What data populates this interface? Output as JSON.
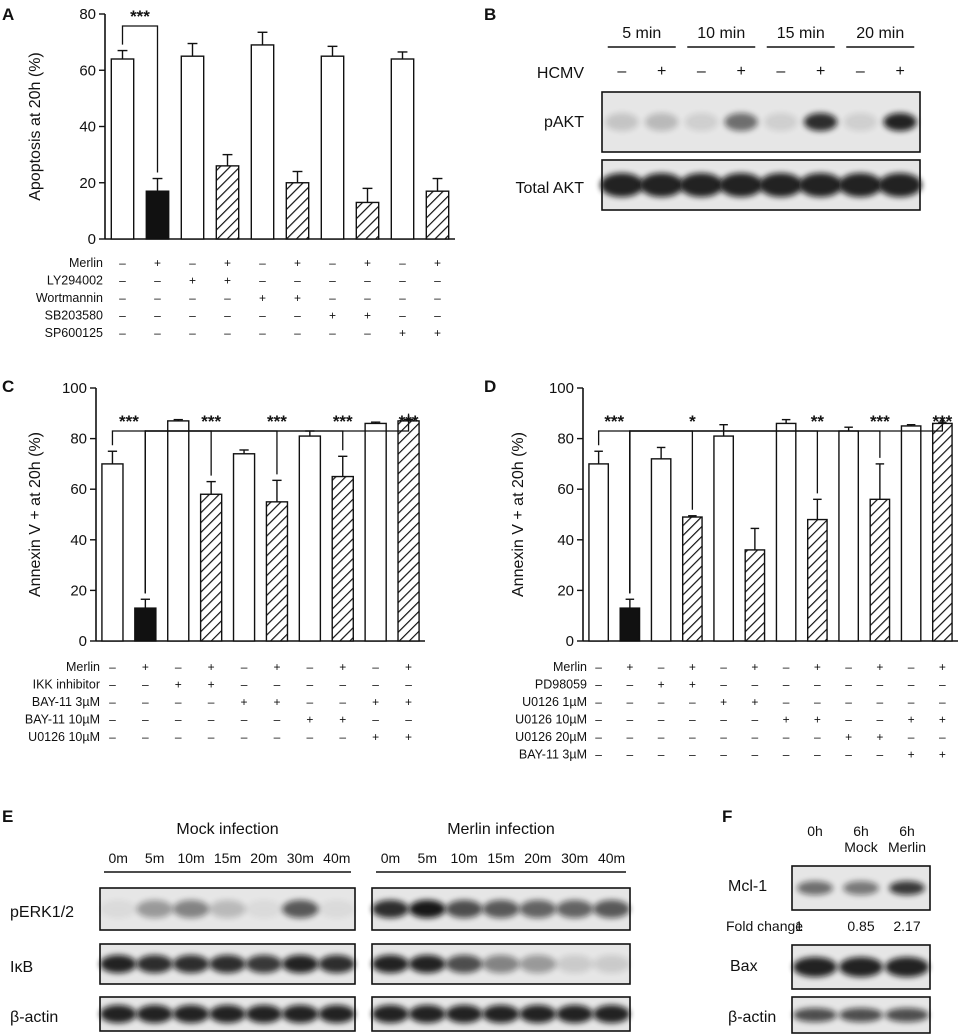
{
  "panels": {
    "A": {
      "label": "A",
      "chart_data": {
        "type": "bar",
        "ylabel": "Apoptosis at 20h (%)",
        "ylim": [
          0,
          80
        ],
        "yticks": [
          0,
          20,
          40,
          60,
          80
        ],
        "values": [
          64,
          17,
          65,
          26,
          69,
          20,
          65,
          13,
          64,
          17
        ],
        "errors": [
          3,
          4.5,
          4.5,
          4,
          4.5,
          4,
          3.5,
          5,
          2.5,
          4.5
        ],
        "styles": [
          "white",
          "black",
          "white",
          "hatched",
          "white",
          "hatched",
          "white",
          "hatched",
          "white",
          "hatched"
        ],
        "conditions": [
          {
            "name": "Merlin",
            "signs": [
              "–",
              "+",
              "–",
              "+",
              "–",
              "+",
              "–",
              "+",
              "–",
              "+"
            ]
          },
          {
            "name": "LY294002",
            "signs": [
              "–",
              "–",
              "+",
              "+",
              "–",
              "–",
              "–",
              "–",
              "–",
              "–"
            ]
          },
          {
            "name": "Wortmannin",
            "signs": [
              "–",
              "–",
              "–",
              "–",
              "+",
              "+",
              "–",
              "–",
              "–",
              "–"
            ]
          },
          {
            "name": "SB203580",
            "signs": [
              "–",
              "–",
              "–",
              "–",
              "–",
              "–",
              "+",
              "+",
              "–",
              "–"
            ]
          },
          {
            "name": "SP600125",
            "signs": [
              "–",
              "–",
              "–",
              "–",
              "–",
              "–",
              "–",
              "–",
              "+",
              "+"
            ]
          }
        ],
        "significance": [
          {
            "from": 0,
            "to": [
              1
            ],
            "label": "***"
          }
        ]
      }
    },
    "B": {
      "label": "B",
      "timepoints": [
        "5 min",
        "10 min",
        "15 min",
        "20 min"
      ],
      "row_label_hcmv": "HCMV",
      "signs": [
        "–",
        "+",
        "–",
        "+",
        "–",
        "+",
        "–",
        "+"
      ],
      "blots": [
        "pAKT",
        "Total AKT"
      ],
      "pakt_intensity": [
        0.15,
        0.2,
        0.1,
        0.55,
        0.1,
        0.85,
        0.1,
        0.9
      ]
    },
    "C": {
      "label": "C",
      "chart_data": {
        "type": "bar",
        "ylabel": "Annexin V + at 20h (%)",
        "ylim": [
          0,
          100
        ],
        "yticks": [
          0,
          20,
          40,
          60,
          80,
          100
        ],
        "values": [
          70,
          13,
          87,
          58,
          74,
          55,
          81,
          65,
          86,
          87
        ],
        "errors": [
          5,
          3.5,
          0.5,
          5,
          1.5,
          8.5,
          2,
          8,
          0.5,
          0.5
        ],
        "styles": [
          "white",
          "black",
          "white",
          "hatched",
          "white",
          "hatched",
          "white",
          "hatched",
          "white",
          "hatched"
        ],
        "conditions": [
          {
            "name": "Merlin",
            "signs": [
              "–",
              "+",
              "–",
              "+",
              "–",
              "+",
              "–",
              "+",
              "–",
              "+"
            ]
          },
          {
            "name": "IKK inhibitor",
            "signs": [
              "–",
              "–",
              "+",
              "+",
              "–",
              "–",
              "–",
              "–",
              "–",
              "–"
            ]
          },
          {
            "name": "BAY-11 3µM",
            "signs": [
              "–",
              "–",
              "–",
              "–",
              "+",
              "+",
              "–",
              "–",
              "+",
              "+"
            ]
          },
          {
            "name": "BAY-11 10µM",
            "signs": [
              "–",
              "–",
              "–",
              "–",
              "–",
              "–",
              "+",
              "+",
              "–",
              "–"
            ]
          },
          {
            "name": "U0126 10µM",
            "signs": [
              "–",
              "–",
              "–",
              "–",
              "–",
              "–",
              "–",
              "–",
              "+",
              "+"
            ]
          }
        ],
        "significance": [
          {
            "from": 0,
            "to": [
              1
            ],
            "label": "***"
          },
          {
            "from": 1,
            "to": [
              3
            ],
            "label": "***"
          },
          {
            "from": 1,
            "to": [
              5
            ],
            "label": "***"
          },
          {
            "from": 1,
            "to": [
              7
            ],
            "label": "***"
          },
          {
            "from": 1,
            "to": [
              9
            ],
            "label": "***"
          }
        ]
      }
    },
    "D": {
      "label": "D",
      "chart_data": {
        "type": "bar",
        "ylabel": "Annexin V + at 20h (%)",
        "ylim": [
          0,
          100
        ],
        "yticks": [
          0,
          20,
          40,
          60,
          80,
          100
        ],
        "values": [
          70,
          13,
          72,
          49,
          81,
          36,
          86,
          48,
          83,
          56,
          85,
          86
        ],
        "errors": [
          5,
          3.5,
          4.5,
          0.5,
          4.5,
          8.5,
          1.5,
          8,
          1.5,
          14,
          0.5,
          0.5
        ],
        "styles": [
          "white",
          "black",
          "white",
          "hatched",
          "white",
          "hatched",
          "white",
          "hatched",
          "white",
          "hatched",
          "white",
          "hatched"
        ],
        "conditions": [
          {
            "name": "Merlin",
            "signs": [
              "–",
              "+",
              "–",
              "+",
              "–",
              "+",
              "–",
              "+",
              "–",
              "+",
              "–",
              "+"
            ]
          },
          {
            "name": "PD98059",
            "signs": [
              "–",
              "–",
              "+",
              "+",
              "–",
              "–",
              "–",
              "–",
              "–",
              "–",
              "–",
              "–"
            ]
          },
          {
            "name": "U0126 1µM",
            "signs": [
              "–",
              "–",
              "–",
              "–",
              "+",
              "+",
              "–",
              "–",
              "–",
              "–",
              "–",
              "–"
            ]
          },
          {
            "name": "U0126 10µM",
            "signs": [
              "–",
              "–",
              "–",
              "–",
              "–",
              "–",
              "+",
              "+",
              "–",
              "–",
              "+",
              "+"
            ]
          },
          {
            "name": "U0126 20µM",
            "signs": [
              "–",
              "–",
              "–",
              "–",
              "–",
              "–",
              "–",
              "–",
              "+",
              "+",
              "–",
              "–"
            ]
          },
          {
            "name": "BAY-11 3µM",
            "signs": [
              "–",
              "–",
              "–",
              "–",
              "–",
              "–",
              "–",
              "–",
              "–",
              "–",
              "+",
              "+"
            ]
          }
        ],
        "significance": [
          {
            "from": 0,
            "to": [
              1
            ],
            "label": "***"
          },
          {
            "from": 1,
            "to": [
              3
            ],
            "label": "*"
          },
          {
            "from": 1,
            "to": [
              7
            ],
            "label": "**"
          },
          {
            "from": 1,
            "to": [
              9
            ],
            "label": "***"
          },
          {
            "from": 1,
            "to": [
              11
            ],
            "label": "***"
          }
        ]
      }
    },
    "E": {
      "label": "E",
      "groups": [
        {
          "title": "Mock infection",
          "times": [
            "0m",
            "5m",
            "10m",
            "15m",
            "20m",
            "30m",
            "40m"
          ]
        },
        {
          "title": "Merlin infection",
          "times": [
            "0m",
            "5m",
            "10m",
            "15m",
            "20m",
            "30m",
            "40m"
          ]
        }
      ],
      "blots": [
        "pERK1/2",
        "IκB",
        "β-actin"
      ],
      "intensity": {
        "perk_mock": [
          0.05,
          0.35,
          0.45,
          0.2,
          0.05,
          0.65,
          0.05
        ],
        "perk_merlin": [
          0.85,
          0.95,
          0.7,
          0.65,
          0.6,
          0.6,
          0.65
        ],
        "ikb_mock": [
          0.9,
          0.85,
          0.85,
          0.85,
          0.8,
          0.9,
          0.85
        ],
        "ikb_merlin": [
          0.9,
          0.9,
          0.7,
          0.45,
          0.35,
          0.12,
          0.12
        ]
      }
    },
    "F": {
      "label": "F",
      "columns": [
        "0h",
        "6h\nMock",
        "6h\nMerlin"
      ],
      "col_line1": [
        "0h",
        "6h",
        "6h"
      ],
      "col_line2": [
        "",
        "Mock",
        "Merlin"
      ],
      "blots": [
        "Mcl-1",
        "Bax",
        "β-actin"
      ],
      "fold_change_label": "Fold change",
      "fold_change_values": [
        "1",
        "0.85",
        "2.17"
      ],
      "mcl1_intensity": [
        0.55,
        0.5,
        0.8
      ]
    }
  }
}
